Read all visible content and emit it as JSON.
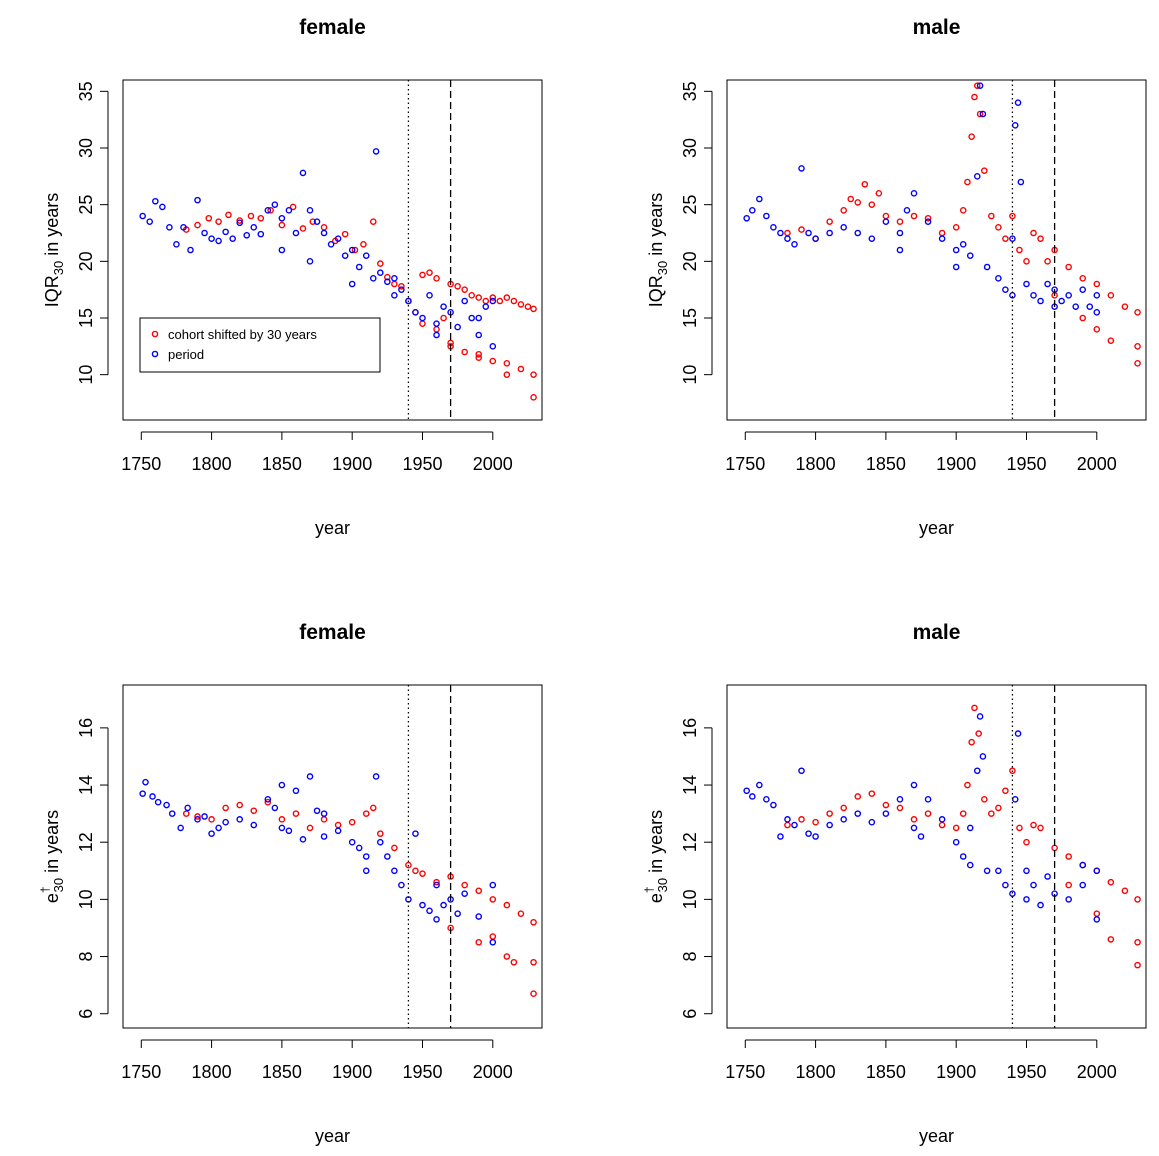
{
  "chart_data": [
    {
      "type": "scatter",
      "title": "female",
      "xlabel": "year",
      "ylabel": [
        "IQR",
        "30",
        " in years"
      ],
      "xlim": [
        1737,
        2035
      ],
      "ylim": [
        6,
        36
      ],
      "xticks": [
        1750,
        1800,
        1850,
        1900,
        1950,
        2000
      ],
      "yticks": [
        10,
        15,
        20,
        25,
        30,
        35
      ],
      "vlines": [
        {
          "x": 1940,
          "style": "dotted"
        },
        {
          "x": 1970,
          "style": "dashed"
        }
      ],
      "legend": "left",
      "series": [
        {
          "name": "cohort shifted by 30 years",
          "color": "#ff0000",
          "x": [
            1782,
            1790,
            1798,
            1805,
            1812,
            1820,
            1828,
            1835,
            1842,
            1850,
            1858,
            1865,
            1872,
            1880,
            1888,
            1895,
            1902,
            1908,
            1915,
            1920,
            1925,
            1930,
            1935,
            1940,
            1945,
            1950,
            1955,
            1960,
            1965,
            1970,
            1975,
            1980,
            1985,
            1990,
            1995,
            2000,
            2005,
            2010,
            2015,
            2020,
            2025,
            2029,
            1960,
            1970,
            1980,
            1990,
            2000,
            2010,
            2020,
            2029,
            1950,
            1970,
            1990,
            2010,
            2029
          ],
          "values": [
            22.8,
            23.2,
            23.8,
            23.5,
            24.1,
            23.6,
            24.0,
            23.8,
            24.5,
            23.2,
            24.8,
            22.9,
            23.5,
            23.0,
            21.8,
            22.4,
            21.0,
            21.5,
            23.5,
            19.8,
            18.6,
            18.0,
            17.8,
            16.5,
            15.5,
            18.8,
            19.0,
            18.5,
            15.0,
            18.0,
            17.8,
            17.5,
            17.0,
            16.8,
            16.5,
            16.8,
            16.5,
            16.8,
            16.5,
            16.2,
            16.0,
            15.8,
            14.0,
            12.5,
            12.0,
            11.8,
            11.2,
            11.0,
            10.5,
            10.0,
            14.5,
            12.8,
            11.5,
            10.0,
            8.0
          ]
        },
        {
          "name": "period",
          "color": "#0000ff",
          "x": [
            1751,
            1756,
            1760,
            1765,
            1770,
            1775,
            1780,
            1785,
            1790,
            1795,
            1800,
            1805,
            1810,
            1815,
            1820,
            1825,
            1830,
            1835,
            1840,
            1845,
            1850,
            1855,
            1860,
            1865,
            1870,
            1875,
            1880,
            1885,
            1890,
            1895,
            1900,
            1905,
            1910,
            1915,
            1917,
            1920,
            1925,
            1930,
            1935,
            1940,
            1945,
            1950,
            1955,
            1960,
            1965,
            1970,
            1975,
            1980,
            1985,
            1990,
            1995,
            2000,
            1850,
            1870,
            1900,
            1930,
            1960,
            1990,
            2000
          ],
          "values": [
            24.0,
            23.5,
            25.3,
            24.8,
            23.0,
            21.5,
            23.0,
            21.0,
            25.4,
            22.5,
            22.0,
            21.8,
            22.6,
            22.0,
            23.4,
            22.3,
            23.0,
            22.4,
            24.5,
            25.0,
            23.8,
            24.5,
            22.5,
            27.8,
            24.5,
            23.5,
            22.5,
            21.5,
            22.0,
            20.5,
            21.0,
            19.5,
            20.5,
            18.5,
            29.7,
            19.0,
            18.2,
            18.5,
            17.5,
            16.5,
            15.5,
            15.0,
            17.0,
            14.5,
            16.0,
            15.5,
            14.2,
            16.5,
            15.0,
            13.5,
            16.0,
            12.5,
            21.0,
            20.0,
            18.0,
            17.0,
            13.5,
            15.0,
            16.5
          ]
        }
      ]
    },
    {
      "type": "scatter",
      "title": "male",
      "xlabel": "year",
      "ylabel": [
        "IQR",
        "30",
        " in years"
      ],
      "xlim": [
        1737,
        2035
      ],
      "ylim": [
        6,
        36
      ],
      "xticks": [
        1750,
        1800,
        1850,
        1900,
        1950,
        2000
      ],
      "yticks": [
        10,
        15,
        20,
        25,
        30,
        35
      ],
      "vlines": [
        {
          "x": 1940,
          "style": "dotted"
        },
        {
          "x": 1970,
          "style": "dashed"
        }
      ],
      "series": [
        {
          "color": "#ff0000",
          "x": [
            1780,
            1790,
            1800,
            1810,
            1820,
            1825,
            1830,
            1835,
            1840,
            1845,
            1850,
            1860,
            1870,
            1880,
            1890,
            1900,
            1905,
            1908,
            1911,
            1913,
            1915,
            1917,
            1920,
            1925,
            1930,
            1935,
            1940,
            1945,
            1950,
            1955,
            1960,
            1965,
            1970,
            1980,
            1990,
            2000,
            2010,
            2020,
            2029,
            1970,
            1990,
            2010,
            2029,
            2000,
            2029
          ],
          "values": [
            22.5,
            22.8,
            22.0,
            23.5,
            24.5,
            25.5,
            25.2,
            26.8,
            25.0,
            26.0,
            24.0,
            23.5,
            24.0,
            23.8,
            22.5,
            23.0,
            24.5,
            27.0,
            31.0,
            34.5,
            35.5,
            33.0,
            28.0,
            24.0,
            23.0,
            22.0,
            24.0,
            21.0,
            20.0,
            22.5,
            22.0,
            20.0,
            21.0,
            19.5,
            18.5,
            18.0,
            17.0,
            16.0,
            15.5,
            17.0,
            15.0,
            13.0,
            11.0,
            14.0,
            12.5
          ]
        },
        {
          "color": "#0000ff",
          "x": [
            1751,
            1755,
            1760,
            1765,
            1770,
            1775,
            1780,
            1785,
            1790,
            1795,
            1800,
            1810,
            1820,
            1830,
            1840,
            1850,
            1860,
            1865,
            1870,
            1880,
            1890,
            1900,
            1905,
            1910,
            1915,
            1917,
            1919,
            1922,
            1930,
            1935,
            1940,
            1942,
            1944,
            1946,
            1950,
            1955,
            1960,
            1965,
            1970,
            1975,
            1980,
            1985,
            1990,
            1995,
            2000,
            1860,
            1900,
            1940,
            1970,
            2000
          ],
          "values": [
            23.8,
            24.5,
            25.5,
            24.0,
            23.0,
            22.5,
            22.0,
            21.5,
            28.2,
            22.5,
            22.0,
            22.5,
            23.0,
            22.5,
            22.0,
            23.5,
            22.5,
            24.5,
            26.0,
            23.5,
            22.0,
            21.0,
            21.5,
            20.5,
            27.5,
            35.5,
            33.0,
            19.5,
            18.5,
            17.5,
            22.0,
            32.0,
            34.0,
            27.0,
            18.0,
            17.0,
            16.5,
            18.0,
            17.5,
            16.5,
            17.0,
            16.0,
            17.5,
            16.0,
            15.5,
            21.0,
            19.5,
            17.0,
            16.0,
            17.0
          ]
        }
      ]
    },
    {
      "type": "scatter",
      "title": "female",
      "xlabel": "year",
      "ylabel": [
        "e",
        "†",
        "30",
        " in years"
      ],
      "xlim": [
        1737,
        2035
      ],
      "ylim": [
        5.5,
        17.5
      ],
      "xticks": [
        1750,
        1800,
        1850,
        1900,
        1950,
        2000
      ],
      "yticks": [
        6,
        8,
        10,
        12,
        14,
        16
      ],
      "vlines": [
        {
          "x": 1940,
          "style": "dotted"
        },
        {
          "x": 1970,
          "style": "dashed"
        }
      ],
      "series": [
        {
          "color": "#ff0000",
          "x": [
            1782,
            1790,
            1800,
            1810,
            1820,
            1830,
            1840,
            1850,
            1860,
            1870,
            1880,
            1890,
            1900,
            1910,
            1915,
            1920,
            1930,
            1940,
            1945,
            1950,
            1960,
            1970,
            1980,
            1990,
            2000,
            2010,
            2020,
            2029,
            1970,
            1990,
            2010,
            2029,
            2000,
            2029,
            2015
          ],
          "values": [
            13.0,
            12.9,
            12.8,
            13.2,
            13.3,
            13.1,
            13.4,
            12.8,
            13.0,
            12.5,
            12.8,
            12.6,
            12.7,
            13.0,
            13.2,
            12.3,
            11.8,
            11.2,
            11.0,
            10.9,
            10.6,
            10.8,
            10.5,
            10.3,
            10.0,
            9.8,
            9.5,
            9.2,
            9.0,
            8.5,
            8.0,
            6.7,
            8.7,
            7.8,
            7.8
          ]
        },
        {
          "color": "#0000ff",
          "x": [
            1751,
            1753,
            1758,
            1762,
            1768,
            1772,
            1778,
            1783,
            1790,
            1795,
            1800,
            1805,
            1810,
            1820,
            1830,
            1840,
            1845,
            1850,
            1855,
            1860,
            1865,
            1870,
            1875,
            1880,
            1890,
            1900,
            1905,
            1910,
            1917,
            1920,
            1925,
            1930,
            1935,
            1940,
            1945,
            1950,
            1955,
            1960,
            1965,
            1970,
            1975,
            1980,
            1990,
            2000,
            1850,
            1880,
            1910,
            1960,
            2000
          ],
          "values": [
            13.7,
            14.1,
            13.6,
            13.4,
            13.3,
            13.0,
            12.5,
            13.2,
            12.8,
            12.9,
            12.3,
            12.5,
            12.7,
            12.8,
            12.6,
            13.5,
            13.2,
            14.0,
            12.4,
            13.8,
            12.1,
            14.3,
            13.1,
            13.0,
            12.4,
            12.0,
            11.8,
            11.5,
            14.3,
            12.0,
            11.5,
            11.0,
            10.5,
            10.0,
            12.3,
            9.8,
            9.6,
            9.3,
            9.8,
            10.0,
            9.5,
            10.2,
            9.4,
            10.5,
            12.5,
            12.2,
            11.0,
            10.5,
            8.5
          ]
        }
      ]
    },
    {
      "type": "scatter",
      "title": "male",
      "xlabel": "year",
      "ylabel": [
        "e",
        "†",
        "30",
        " in years"
      ],
      "xlim": [
        1737,
        2035
      ],
      "ylim": [
        5.5,
        17.5
      ],
      "xticks": [
        1750,
        1800,
        1850,
        1900,
        1950,
        2000
      ],
      "yticks": [
        6,
        8,
        10,
        12,
        14,
        16
      ],
      "vlines": [
        {
          "x": 1940,
          "style": "dotted"
        },
        {
          "x": 1970,
          "style": "dashed"
        }
      ],
      "series": [
        {
          "color": "#ff0000",
          "x": [
            1780,
            1790,
            1800,
            1810,
            1820,
            1830,
            1840,
            1850,
            1860,
            1870,
            1880,
            1890,
            1900,
            1905,
            1908,
            1911,
            1913,
            1916,
            1920,
            1925,
            1930,
            1935,
            1940,
            1945,
            1950,
            1955,
            1960,
            1970,
            1980,
            1990,
            2000,
            2010,
            2020,
            2029,
            1980,
            2000,
            2029,
            2029,
            2010
          ],
          "values": [
            12.6,
            12.8,
            12.7,
            13.0,
            13.2,
            13.6,
            13.7,
            13.3,
            13.2,
            12.8,
            13.0,
            12.6,
            12.5,
            13.0,
            14.0,
            15.5,
            16.7,
            15.8,
            13.5,
            13.0,
            13.2,
            13.8,
            14.5,
            12.5,
            12.0,
            12.6,
            12.5,
            11.8,
            11.5,
            11.2,
            11.0,
            10.6,
            10.3,
            10.0,
            10.5,
            9.5,
            8.5,
            7.7,
            8.6
          ]
        },
        {
          "color": "#0000ff",
          "x": [
            1751,
            1755,
            1760,
            1765,
            1770,
            1775,
            1780,
            1785,
            1790,
            1795,
            1800,
            1810,
            1820,
            1830,
            1840,
            1850,
            1860,
            1870,
            1875,
            1880,
            1890,
            1900,
            1905,
            1910,
            1915,
            1917,
            1919,
            1922,
            1930,
            1935,
            1940,
            1942,
            1944,
            1950,
            1955,
            1960,
            1965,
            1970,
            1980,
            1990,
            2000,
            1870,
            1910,
            1950,
            1990,
            2000
          ],
          "values": [
            13.8,
            13.6,
            14.0,
            13.5,
            13.3,
            12.2,
            12.8,
            12.6,
            14.5,
            12.3,
            12.2,
            12.6,
            12.8,
            13.0,
            12.7,
            13.0,
            13.5,
            14.0,
            12.2,
            13.5,
            12.8,
            12.0,
            11.5,
            12.5,
            14.5,
            16.4,
            15.0,
            11.0,
            11.0,
            10.5,
            10.2,
            13.5,
            15.8,
            10.0,
            10.5,
            9.8,
            10.8,
            10.2,
            10.0,
            10.5,
            9.3,
            12.5,
            11.2,
            11.0,
            11.2,
            11.0
          ]
        }
      ]
    }
  ]
}
